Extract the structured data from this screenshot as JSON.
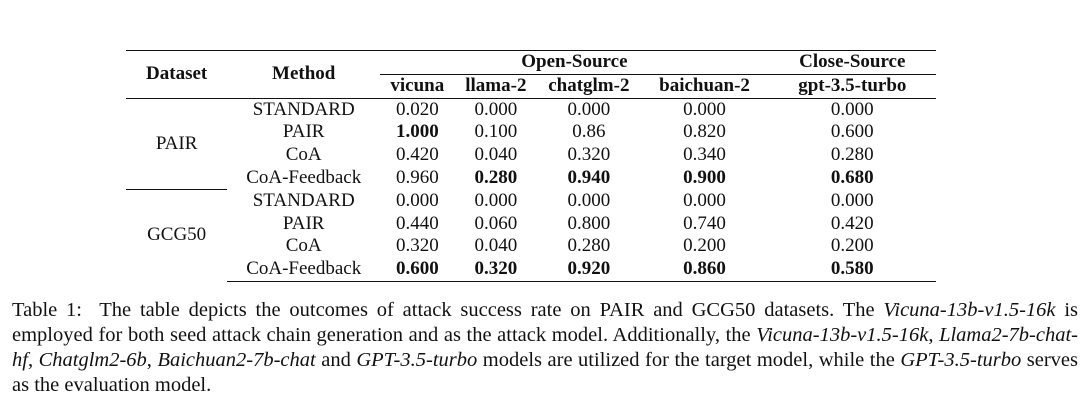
{
  "table": {
    "headers": {
      "dataset": "Dataset",
      "method": "Method",
      "group_open": "Open-Source",
      "group_close": "Close-Source",
      "models": [
        "vicuna",
        "llama-2",
        "chatglm-2",
        "baichuan-2",
        "gpt-3.5-turbo"
      ]
    },
    "groups": [
      {
        "dataset": "PAIR",
        "rows": [
          {
            "method": "STANDARD",
            "values": [
              "0.020",
              "0.000",
              "0.000",
              "0.000",
              "0.000"
            ]
          },
          {
            "method": "PAIR",
            "values": [
              "1.000",
              "0.100",
              "0.86",
              "0.820",
              "0.600"
            ]
          },
          {
            "method": "CoA",
            "values": [
              "0.420",
              "0.040",
              "0.320",
              "0.340",
              "0.280"
            ]
          },
          {
            "method": "CoA-Feedback",
            "values": [
              "0.960",
              "0.280",
              "0.940",
              "0.900",
              "0.680"
            ]
          }
        ]
      },
      {
        "dataset": "GCG50",
        "rows": [
          {
            "method": "STANDARD",
            "values": [
              "0.000",
              "0.000",
              "0.000",
              "0.000",
              "0.000"
            ]
          },
          {
            "method": "PAIR",
            "values": [
              "0.440",
              "0.060",
              "0.800",
              "0.740",
              "0.420"
            ]
          },
          {
            "method": "CoA",
            "values": [
              "0.320",
              "0.040",
              "0.280",
              "0.200",
              "0.200"
            ]
          },
          {
            "method": "CoA-Feedback",
            "values": [
              "0.600",
              "0.320",
              "0.920",
              "0.860",
              "0.580"
            ]
          }
        ]
      }
    ]
  },
  "caption": {
    "label": "Table 1:",
    "t1": "The table depicts the outcomes of attack success rate on PAIR and GCG50 datasets. The ",
    "i1": "Vicuna-13b-v1.5-16k",
    "t2": " is employed for both seed attack chain generation and as the attack model. Additionally, the ",
    "i2": "Vicuna-13b-v1.5-16k",
    "t3": ", ",
    "i3": "Llama2-7b-chat-hf",
    "t4": ", ",
    "i4": "Chatglm2-6b",
    "t5": ", ",
    "i5": "Baichuan2-7b-chat",
    "t6": " and ",
    "i6": "GPT-3.5-turbo",
    "t7": " models are utilized for the target model, while the ",
    "i7": "GPT-3.5-turbo",
    "t8": " serves as the evaluation model."
  }
}
